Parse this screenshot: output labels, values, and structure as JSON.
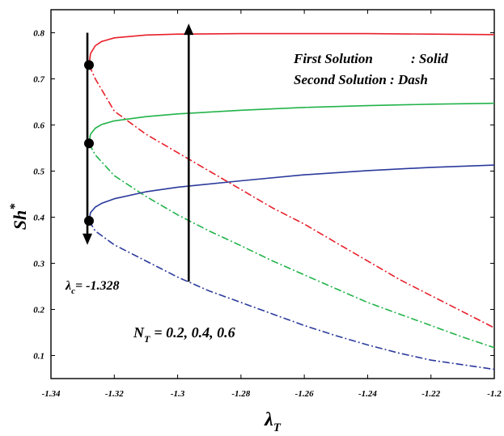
{
  "chart_data": {
    "type": "line",
    "xlabel": "λ_T",
    "ylabel": "Sh*",
    "xlim": [
      -1.34,
      -1.2
    ],
    "ylim": [
      0.05,
      0.85
    ],
    "x_ticks": [
      -1.34,
      -1.32,
      -1.3,
      -1.28,
      -1.26,
      -1.24,
      -1.22,
      -1.2
    ],
    "x_tick_labels": [
      "-1.34",
      "-1.32",
      "-1.3",
      "-1.28",
      "-1.26",
      "-1.24",
      "-1.22",
      "-1.2"
    ],
    "y_ticks": [
      0.1,
      0.2,
      0.3,
      0.4,
      0.5,
      0.6,
      0.7,
      0.8
    ],
    "y_tick_labels": [
      "0.1",
      "0.2",
      "0.3",
      "0.4",
      "0.5",
      "0.6",
      "0.7",
      "0.8"
    ],
    "grid": false,
    "series": [
      {
        "color": "#e8202a",
        "style": "solid",
        "x": [
          -1.328,
          -1.3275,
          -1.326,
          -1.324,
          -1.32,
          -1.31,
          -1.3,
          -1.28,
          -1.26,
          -1.24,
          -1.22,
          -1.2
        ],
        "y": [
          0.73,
          0.755,
          0.772,
          0.781,
          0.789,
          0.795,
          0.797,
          0.798,
          0.798,
          0.798,
          0.797,
          0.796
        ]
      },
      {
        "color": "#e8202a",
        "style": "dashdot",
        "x": [
          -1.328,
          -1.326,
          -1.32,
          -1.31,
          -1.3,
          -1.29,
          -1.28,
          -1.27,
          -1.26,
          -1.25,
          -1.24,
          -1.23,
          -1.22,
          -1.21,
          -1.2
        ],
        "y": [
          0.73,
          0.7,
          0.63,
          0.58,
          0.54,
          0.5,
          0.46,
          0.42,
          0.385,
          0.345,
          0.305,
          0.265,
          0.23,
          0.195,
          0.16
        ]
      },
      {
        "color": "#22b34a",
        "style": "solid",
        "x": [
          -1.328,
          -1.3275,
          -1.326,
          -1.324,
          -1.32,
          -1.31,
          -1.3,
          -1.28,
          -1.26,
          -1.24,
          -1.22,
          -1.2
        ],
        "y": [
          0.56,
          0.58,
          0.593,
          0.601,
          0.609,
          0.618,
          0.624,
          0.632,
          0.638,
          0.642,
          0.645,
          0.647
        ]
      },
      {
        "color": "#22b34a",
        "style": "dashdot",
        "x": [
          -1.328,
          -1.326,
          -1.32,
          -1.31,
          -1.3,
          -1.29,
          -1.28,
          -1.27,
          -1.26,
          -1.25,
          -1.24,
          -1.23,
          -1.22,
          -1.21,
          -1.2
        ],
        "y": [
          0.56,
          0.535,
          0.49,
          0.445,
          0.405,
          0.37,
          0.338,
          0.305,
          0.275,
          0.245,
          0.215,
          0.19,
          0.165,
          0.14,
          0.117
        ]
      },
      {
        "color": "#2b3a9c",
        "style": "solid",
        "x": [
          -1.328,
          -1.3275,
          -1.326,
          -1.324,
          -1.32,
          -1.31,
          -1.3,
          -1.28,
          -1.26,
          -1.24,
          -1.22,
          -1.2
        ],
        "y": [
          0.392,
          0.41,
          0.422,
          0.43,
          0.44,
          0.455,
          0.465,
          0.479,
          0.492,
          0.501,
          0.508,
          0.513
        ]
      },
      {
        "color": "#2b3a9c",
        "style": "dashdot",
        "x": [
          -1.328,
          -1.326,
          -1.32,
          -1.31,
          -1.3,
          -1.29,
          -1.28,
          -1.27,
          -1.26,
          -1.25,
          -1.24,
          -1.23,
          -1.22,
          -1.21,
          -1.2
        ],
        "y": [
          0.392,
          0.37,
          0.34,
          0.305,
          0.27,
          0.24,
          0.215,
          0.19,
          0.165,
          0.143,
          0.123,
          0.105,
          0.09,
          0.08,
          0.07
        ]
      }
    ],
    "critical_points": {
      "x": -1.328,
      "y": [
        0.73,
        0.56,
        0.392
      ]
    },
    "arrows": [
      {
        "x": -1.3285,
        "from_y": 0.8,
        "to_y": 0.34,
        "direction": "down"
      },
      {
        "x": -1.2965,
        "from_y": 0.26,
        "to_y": 0.82,
        "direction": "up"
      }
    ],
    "annotations": {
      "legend_line1_left": "First Solution",
      "legend_line1_right": ": Solid",
      "legend_line2": "Second Solution : Dash",
      "critical_label_main": "λ",
      "critical_label_sub": "c",
      "critical_label_value": "= -1.328",
      "nt_label_main": "N",
      "nt_label_sub": "T",
      "nt_label_value": "= 0.2, 0.4, 0.6",
      "ylabel_main": "Sh",
      "ylabel_sup": "*",
      "xlabel_main": "λ",
      "xlabel_sub": "T"
    }
  }
}
